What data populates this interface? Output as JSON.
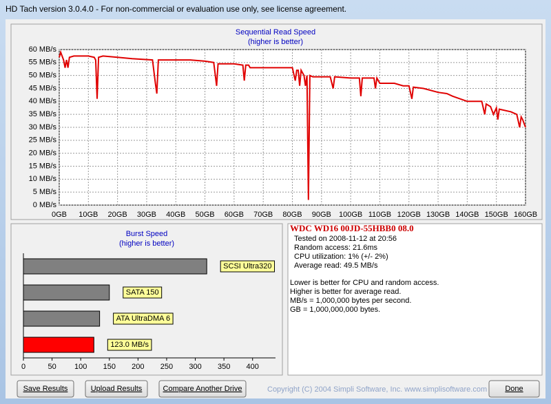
{
  "window": {
    "title": "HD Tach version 3.0.4.0  - For non-commercial or evaluation use only, see license agreement."
  },
  "chart_data": [
    {
      "type": "line",
      "title": "Sequential Read Speed",
      "subtitle": "(higher is better)",
      "color": "#e00000",
      "grid": true,
      "x": [
        0,
        0.5,
        1.5,
        2,
        2.5,
        3,
        3.5,
        5,
        10,
        12,
        12.5,
        13,
        13.5,
        15,
        20,
        25,
        32,
        33,
        33.5,
        34,
        40,
        45,
        50,
        53,
        54,
        54.5,
        60,
        63,
        63.5,
        64,
        65,
        65.5,
        70,
        75,
        80,
        81,
        81.5,
        82,
        82.5,
        83,
        84,
        84.5,
        85,
        85.5,
        86,
        87,
        90,
        93,
        94,
        94.5,
        100,
        103,
        103.5,
        104,
        108,
        108.5,
        109,
        110,
        115,
        118,
        120,
        121,
        121.5,
        125,
        130,
        133,
        135,
        140,
        145,
        146,
        146.5,
        148,
        149,
        150,
        150.5,
        151,
        155,
        157,
        158,
        158.5,
        159,
        160
      ],
      "values": [
        57,
        59,
        56,
        53,
        56,
        53,
        57,
        57.5,
        57.5,
        57,
        56,
        41,
        57,
        57.5,
        57,
        56.5,
        56,
        47,
        43,
        56,
        56,
        56,
        55.5,
        55,
        46,
        54.5,
        54.5,
        54,
        48,
        54,
        54,
        53,
        53,
        53,
        53,
        48,
        52,
        52,
        46,
        52,
        50,
        46,
        50,
        2,
        50,
        49.5,
        49.5,
        49.5,
        45,
        49.5,
        49,
        49,
        42,
        49,
        49,
        45,
        49,
        47,
        47,
        46,
        46,
        41,
        45.5,
        45,
        43.5,
        43,
        42,
        40,
        40,
        35,
        39,
        38,
        35,
        37.5,
        33,
        37,
        36,
        35,
        30,
        34,
        33,
        30
      ],
      "xlim": [
        0,
        160
      ],
      "ylim": [
        0,
        60
      ],
      "xticks": [
        {
          "value": 0,
          "label": "0GB"
        },
        {
          "value": 10,
          "label": "10GB"
        },
        {
          "value": 20,
          "label": "20GB"
        },
        {
          "value": 30,
          "label": "30GB"
        },
        {
          "value": 40,
          "label": "40GB"
        },
        {
          "value": 50,
          "label": "50GB"
        },
        {
          "value": 60,
          "label": "60GB"
        },
        {
          "value": 70,
          "label": "70GB"
        },
        {
          "value": 80,
          "label": "80GB"
        },
        {
          "value": 90,
          "label": "90GB"
        },
        {
          "value": 100,
          "label": "100GB"
        },
        {
          "value": 110,
          "label": "110GB"
        },
        {
          "value": 120,
          "label": "120GB"
        },
        {
          "value": 130,
          "label": "130GB"
        },
        {
          "value": 140,
          "label": "140GB"
        },
        {
          "value": 150,
          "label": "150GB"
        },
        {
          "value": 160,
          "label": "160GB"
        }
      ],
      "yticks": [
        {
          "value": 0,
          "label": "0 MB/s"
        },
        {
          "value": 5,
          "label": "5 MB/s"
        },
        {
          "value": 10,
          "label": "10 MB/s"
        },
        {
          "value": 15,
          "label": "15 MB/s"
        },
        {
          "value": 20,
          "label": "20 MB/s"
        },
        {
          "value": 25,
          "label": "25 MB/s"
        },
        {
          "value": 30,
          "label": "30 MB/s"
        },
        {
          "value": 35,
          "label": "35 MB/s"
        },
        {
          "value": 40,
          "label": "40 MB/s"
        },
        {
          "value": 45,
          "label": "45 MB/s"
        },
        {
          "value": 50,
          "label": "50 MB/s"
        },
        {
          "value": 55,
          "label": "55 MB/s"
        },
        {
          "value": 60,
          "label": "60 MB/s"
        }
      ]
    },
    {
      "type": "hbar",
      "title": "Burst Speed",
      "subtitle": "(higher is better)",
      "categories": [
        "SCSI Ultra320",
        "SATA 150",
        "ATA UltraDMA 6",
        null
      ],
      "values": [
        320,
        150,
        133,
        123
      ],
      "value_labels": [
        null,
        null,
        null,
        "123.0 MB/s"
      ],
      "colors": [
        "#808080",
        "#808080",
        "#808080",
        "#ff0000"
      ],
      "xlim": [
        0,
        440
      ],
      "xticks": [
        0,
        50,
        100,
        150,
        200,
        250,
        300,
        350,
        400
      ]
    }
  ],
  "info": {
    "drive": "WDC WD16 00JD-55HBB0 08.0",
    "lines": [
      "Tested on 2008-11-12 at 20:56",
      "Random access: 21.6ms",
      "CPU utilization: 1% (+/- 2%)",
      "Average read: 49.5 MB/s"
    ],
    "notes": [
      "Lower is better for CPU and random access.",
      "Higher is better for average read.",
      "MB/s = 1,000,000 bytes per second.",
      "GB = 1,000,000,000 bytes."
    ]
  },
  "buttons": [
    "Save Results",
    "Upload Results",
    "Compare Another Drive",
    "Done"
  ],
  "copyright": "Copyright (C) 2004 Simpli Software, Inc. www.simplisoftware.com"
}
